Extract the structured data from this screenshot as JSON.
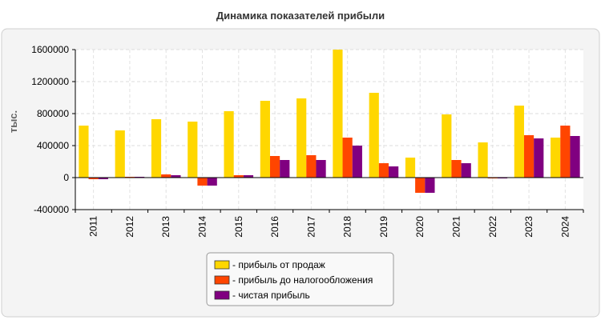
{
  "chart_data": {
    "type": "bar",
    "title": "Динамика показателей прибыли",
    "ylabel": "тыс.",
    "xlabel": "",
    "categories": [
      "2011",
      "2012",
      "2013",
      "2014",
      "2015",
      "2016",
      "2017",
      "2018",
      "2019",
      "2020",
      "2021",
      "2022",
      "2023",
      "2024"
    ],
    "ylim": [
      -400000,
      1600000
    ],
    "yticks": [
      -400000,
      0,
      400000,
      800000,
      1200000,
      1600000
    ],
    "ytick_labels": [
      "-400000",
      "0",
      "400000",
      "800000",
      "1200000",
      "1600000"
    ],
    "grid": true,
    "legend_position": "bottom-center",
    "series": [
      {
        "name": "- прибыль от продаж",
        "color": "#FFD700",
        "values": [
          650000,
          590000,
          730000,
          700000,
          830000,
          960000,
          990000,
          1600000,
          1060000,
          250000,
          790000,
          440000,
          900000,
          500000
        ]
      },
      {
        "name": "- прибыль до налогообложения",
        "color": "#FF4500",
        "values": [
          -20000,
          10000,
          40000,
          -100000,
          30000,
          270000,
          280000,
          500000,
          180000,
          -190000,
          220000,
          -10000,
          530000,
          650000
        ]
      },
      {
        "name": "- чистая прибыль",
        "color": "#800080",
        "values": [
          -20000,
          10000,
          30000,
          -100000,
          30000,
          220000,
          220000,
          400000,
          140000,
          -190000,
          180000,
          -10000,
          490000,
          520000
        ]
      }
    ]
  }
}
